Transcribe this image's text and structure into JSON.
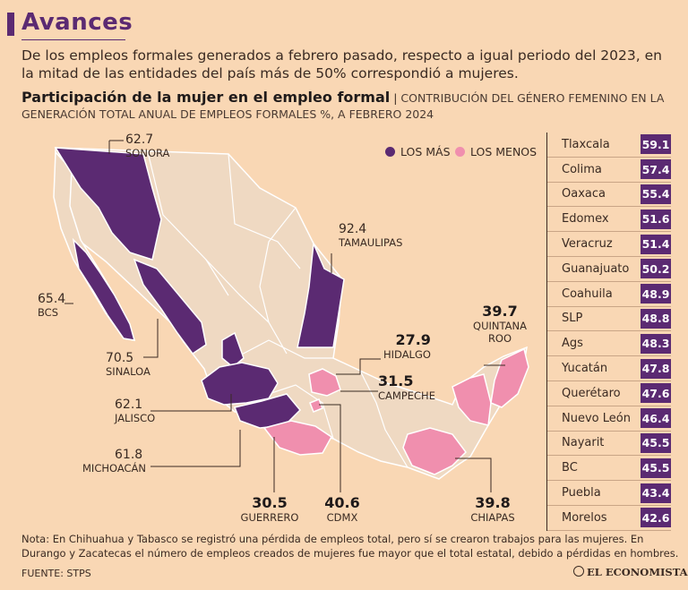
{
  "title": "Avances",
  "subtitle": "De los empleos formales generados a febrero pasado, respecto a igual periodo del 2023, en la mitad de las entidades del país más de 50% correspondió a mujeres.",
  "section_title": "Participación de la mujer en el empleo formal",
  "section_desc": "Contribución del género femenino en la generación total anual de empleos formales %, a febrero 2024",
  "legend": {
    "most_label": "LOS MÁS",
    "least_label": "LOS MENOS",
    "most_color": "#5b2a72",
    "least_color": "#f08fae"
  },
  "map_labels": {
    "sonora": {
      "value": "62.7",
      "name": "SONORA"
    },
    "bcs": {
      "value": "65.4",
      "name": "BCS"
    },
    "sinaloa": {
      "value": "70.5",
      "name": "SINALOA"
    },
    "jalisco": {
      "value": "62.1",
      "name": "JALISCO"
    },
    "michoacan": {
      "value": "61.8",
      "name": "MICHOACÁN"
    },
    "tamaulipas": {
      "value": "92.4",
      "name": "TAMAULIPAS"
    },
    "hidalgo": {
      "value": "27.9",
      "name": "HIDALGO"
    },
    "campeche": {
      "value": "31.5",
      "name": "CAMPECHE"
    },
    "quintana_roo": {
      "value": "39.7",
      "name": "QUINTANA ROO"
    },
    "guerrero": {
      "value": "30.5",
      "name": "GUERRERO"
    },
    "cdmx": {
      "value": "40.6",
      "name": "CDMX"
    },
    "chiapas": {
      "value": "39.8",
      "name": "CHIAPAS"
    }
  },
  "ranking": [
    {
      "state": "Tlaxcala",
      "value": "59.1"
    },
    {
      "state": "Colima",
      "value": "57.4"
    },
    {
      "state": "Oaxaca",
      "value": "55.4"
    },
    {
      "state": "Edomex",
      "value": "51.6"
    },
    {
      "state": "Veracruz",
      "value": "51.4"
    },
    {
      "state": "Guanajuato",
      "value": "50.2"
    },
    {
      "state": "Coahuila",
      "value": "48.9"
    },
    {
      "state": "SLP",
      "value": "48.8"
    },
    {
      "state": "Ags",
      "value": "48.3"
    },
    {
      "state": "Yucatán",
      "value": "47.8"
    },
    {
      "state": "Querétaro",
      "value": "47.6"
    },
    {
      "state": "Nuevo León",
      "value": "46.4"
    },
    {
      "state": "Nayarit",
      "value": "45.5"
    },
    {
      "state": "BC",
      "value": "45.5"
    },
    {
      "state": "Puebla",
      "value": "43.4"
    },
    {
      "state": "Morelos",
      "value": "42.6"
    }
  ],
  "note": "Nota: En Chihuahua y Tabasco se registró una pérdida de empleos total, pero sí se crearon trabajos para las mujeres. En Durango y Zacatecas el número de empleos creados de mujeres fue mayor que el total estatal, debido a pérdidas en hombres.",
  "source": "FUENTE: STPS",
  "logo": "EL ECONOMISTA"
}
